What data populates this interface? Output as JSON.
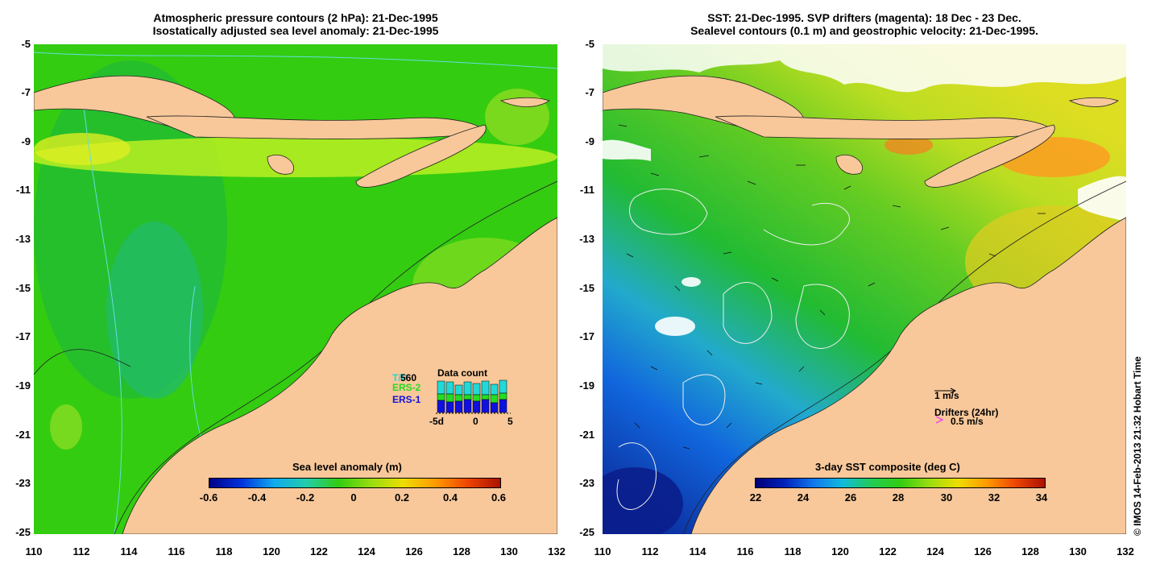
{
  "left_panel": {
    "title_line1": "Atmospheric pressure contours (2 hPa): 21-Dec-1995",
    "title_line2": "Isostatically adjusted sea level anomaly: 21-Dec-1995",
    "colorbar": {
      "title": "Sea level anomaly (m)",
      "labels": [
        "-0.6",
        "-0.4",
        "-0.2",
        "0",
        "0.2",
        "0.4",
        "0.6"
      ],
      "range": [
        -0.6,
        0.6
      ]
    },
    "data_count": {
      "title": "Data count",
      "count": "560",
      "sources": [
        {
          "name": "T/P",
          "color": "#22d8d8"
        },
        {
          "name": "ERS-2",
          "color": "#22dd22"
        },
        {
          "name": "ERS-1",
          "color": "#1111dd"
        }
      ],
      "axis_labels": [
        "-5d",
        "0",
        "5"
      ]
    }
  },
  "right_panel": {
    "title_line1": "SST: 21-Dec-1995. SVP drifters (magenta): 18 Dec - 23 Dec.",
    "title_line2": "Sealevel contours (0.1 m) and geostrophic velocity: 21-Dec-1995.",
    "colorbar": {
      "title": "3-day SST composite (deg C)",
      "labels": [
        "22",
        "24",
        "26",
        "28",
        "30",
        "32",
        "34"
      ],
      "range": [
        22,
        34
      ]
    },
    "velocity_legend": "1 m/s",
    "drifters_legend": "Drifters (24hr)",
    "drifters_speed": "0.5 m/s",
    "credit": "© IMOS 14-Feb-2013 21:32 Hobart Time"
  },
  "axes": {
    "lat_labels": [
      "-5",
      "-7",
      "-9",
      "-11",
      "-13",
      "-15",
      "-17",
      "-19",
      "-21",
      "-23",
      "-25"
    ],
    "lon_labels": [
      "110",
      "112",
      "114",
      "116",
      "118",
      "120",
      "122",
      "124",
      "126",
      "128",
      "130",
      "132"
    ],
    "lat_range": [
      -25,
      -5
    ],
    "lon_range": [
      110,
      132
    ]
  },
  "colors": {
    "land": "#f8c89a",
    "sla_base": "#33cc11",
    "sst_base": "#22bb22"
  }
}
